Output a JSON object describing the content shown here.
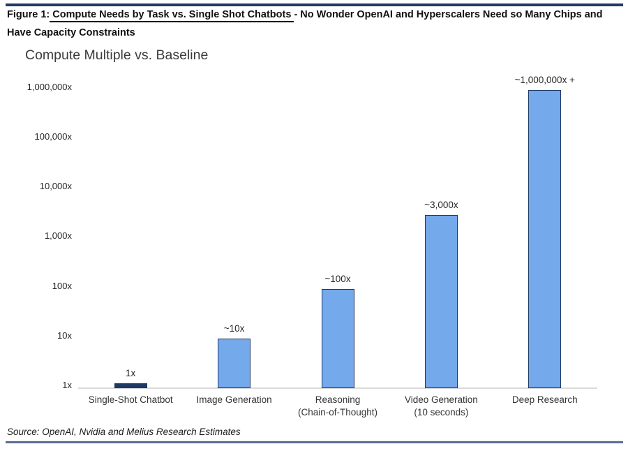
{
  "header": {
    "prefix": "Figure 1:",
    "underlined": " Compute Needs by Task vs. Single Shot Chatbots ",
    "rest": "- No Wonder OpenAI and Hyperscalers Need so Many Chips and",
    "line2": "Have Capacity Constraints"
  },
  "footer": {
    "source_text": "Source: OpenAI, Nvidia and Melius Research Estimates"
  },
  "chart_data": {
    "type": "bar",
    "title": "Compute Multiple vs. Baseline",
    "xlabel": "",
    "ylabel": "",
    "scale": "log10",
    "ylim": [
      1,
      1000000
    ],
    "grid": false,
    "legend": false,
    "yticks": [
      {
        "value": 1000000,
        "label": "1,000,000x"
      },
      {
        "value": 100000,
        "label": "100,000x"
      },
      {
        "value": 10000,
        "label": "10,000x"
      },
      {
        "value": 1000,
        "label": "1,000x"
      },
      {
        "value": 100,
        "label": "100x"
      },
      {
        "value": 10,
        "label": "10x"
      },
      {
        "value": 1,
        "label": "1x"
      }
    ],
    "points": [
      {
        "category_lines": [
          "Single-Shot Chatbot"
        ],
        "value": 1,
        "label": "1x",
        "highlight": true
      },
      {
        "category_lines": [
          "Image Generation"
        ],
        "value": 10,
        "label": "~10x",
        "highlight": false
      },
      {
        "category_lines": [
          "Reasoning",
          "(Chain-of-Thought)"
        ],
        "value": 100,
        "label": "~100x",
        "highlight": false
      },
      {
        "category_lines": [
          "Video Generation",
          "(10 seconds)"
        ],
        "value": 3000,
        "label": "~3,000x",
        "highlight": false
      },
      {
        "category_lines": [
          "Deep Research"
        ],
        "value": 1000000,
        "label": "~1,000,000x +",
        "highlight": false
      }
    ],
    "colors": {
      "bar_fill": "#74a9ec",
      "bar_border": "#1f3864",
      "baseline_bar_fill": "#1f3864",
      "axis_line": "#d9d9d9"
    }
  }
}
